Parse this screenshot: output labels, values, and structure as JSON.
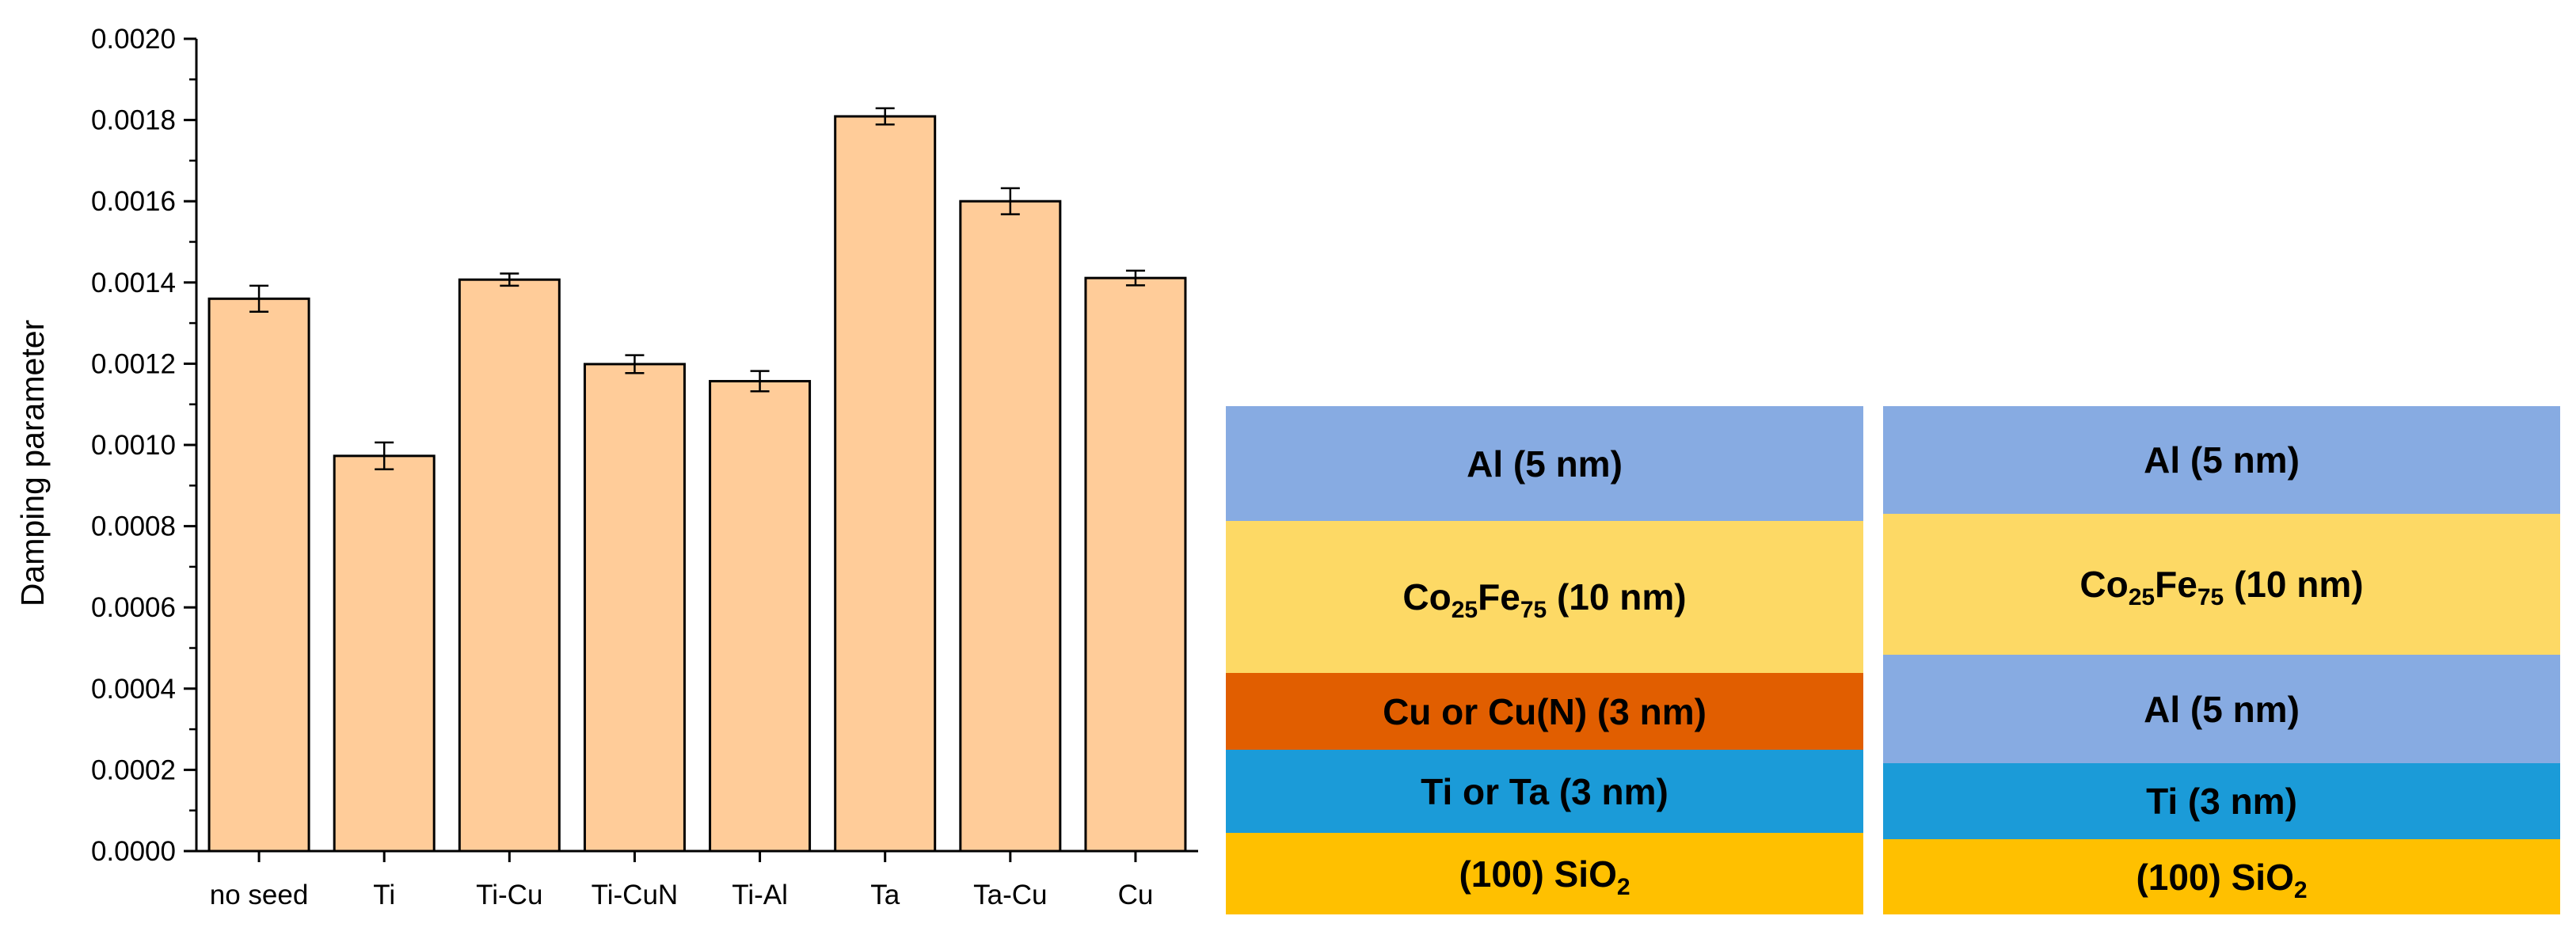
{
  "chart_data": {
    "type": "bar",
    "title": "",
    "xlabel": "",
    "ylabel": "Damping parameter",
    "categories": [
      "no seed",
      "Ti",
      "Ti-Cu",
      "Ti-CuN",
      "Ti-Al",
      "Ta",
      "Ta-Cu",
      "Cu"
    ],
    "values": [
      0.00136,
      0.000973,
      0.001407,
      0.001199,
      0.001157,
      0.001809,
      0.0016,
      0.001411
    ],
    "errors": [
      3.2e-05,
      3.3e-05,
      1.5e-05,
      2.2e-05,
      2.5e-05,
      2e-05,
      3.2e-05,
      1.8e-05
    ],
    "ylim": [
      0,
      0.002
    ],
    "yticks": [
      "0.0000",
      "0.0002",
      "0.0004",
      "0.0006",
      "0.0008",
      "0.0010",
      "0.0012",
      "0.0014",
      "0.0016",
      "0.0018",
      "0.0020"
    ],
    "bar_color": "#FFCC99",
    "grid": false,
    "legend": "none"
  },
  "stacks": [
    {
      "layers": [
        {
          "text": "Al (5 nm)",
          "color": "#87ABE2"
        },
        {
          "text": "Co",
          "sub1": "25",
          "mid": "Fe",
          "sub2": "75",
          "tail": " (10 nm)",
          "color": "#FDD965"
        },
        {
          "text": "Cu or Cu(N) (3 nm)",
          "color": "#E15E00"
        },
        {
          "text": "Ti or Ta (3 nm)",
          "color": "#1B9BD8"
        },
        {
          "text": "(100) SiO",
          "sub": "2",
          "color": "#FFC000"
        }
      ]
    },
    {
      "layers": [
        {
          "text": "Al (5 nm)",
          "color": "#87ABE2"
        },
        {
          "text": "Co",
          "sub1": "25",
          "mid": "Fe",
          "sub2": "75",
          "tail": " (10 nm)",
          "color": "#FDD965"
        },
        {
          "text": "Al (5 nm)",
          "color": "#87ABE2"
        },
        {
          "text": "Ti (3 nm)",
          "color": "#1B9BD8"
        },
        {
          "text": "(100) SiO",
          "sub": "2",
          "color": "#FFC000"
        }
      ]
    }
  ]
}
